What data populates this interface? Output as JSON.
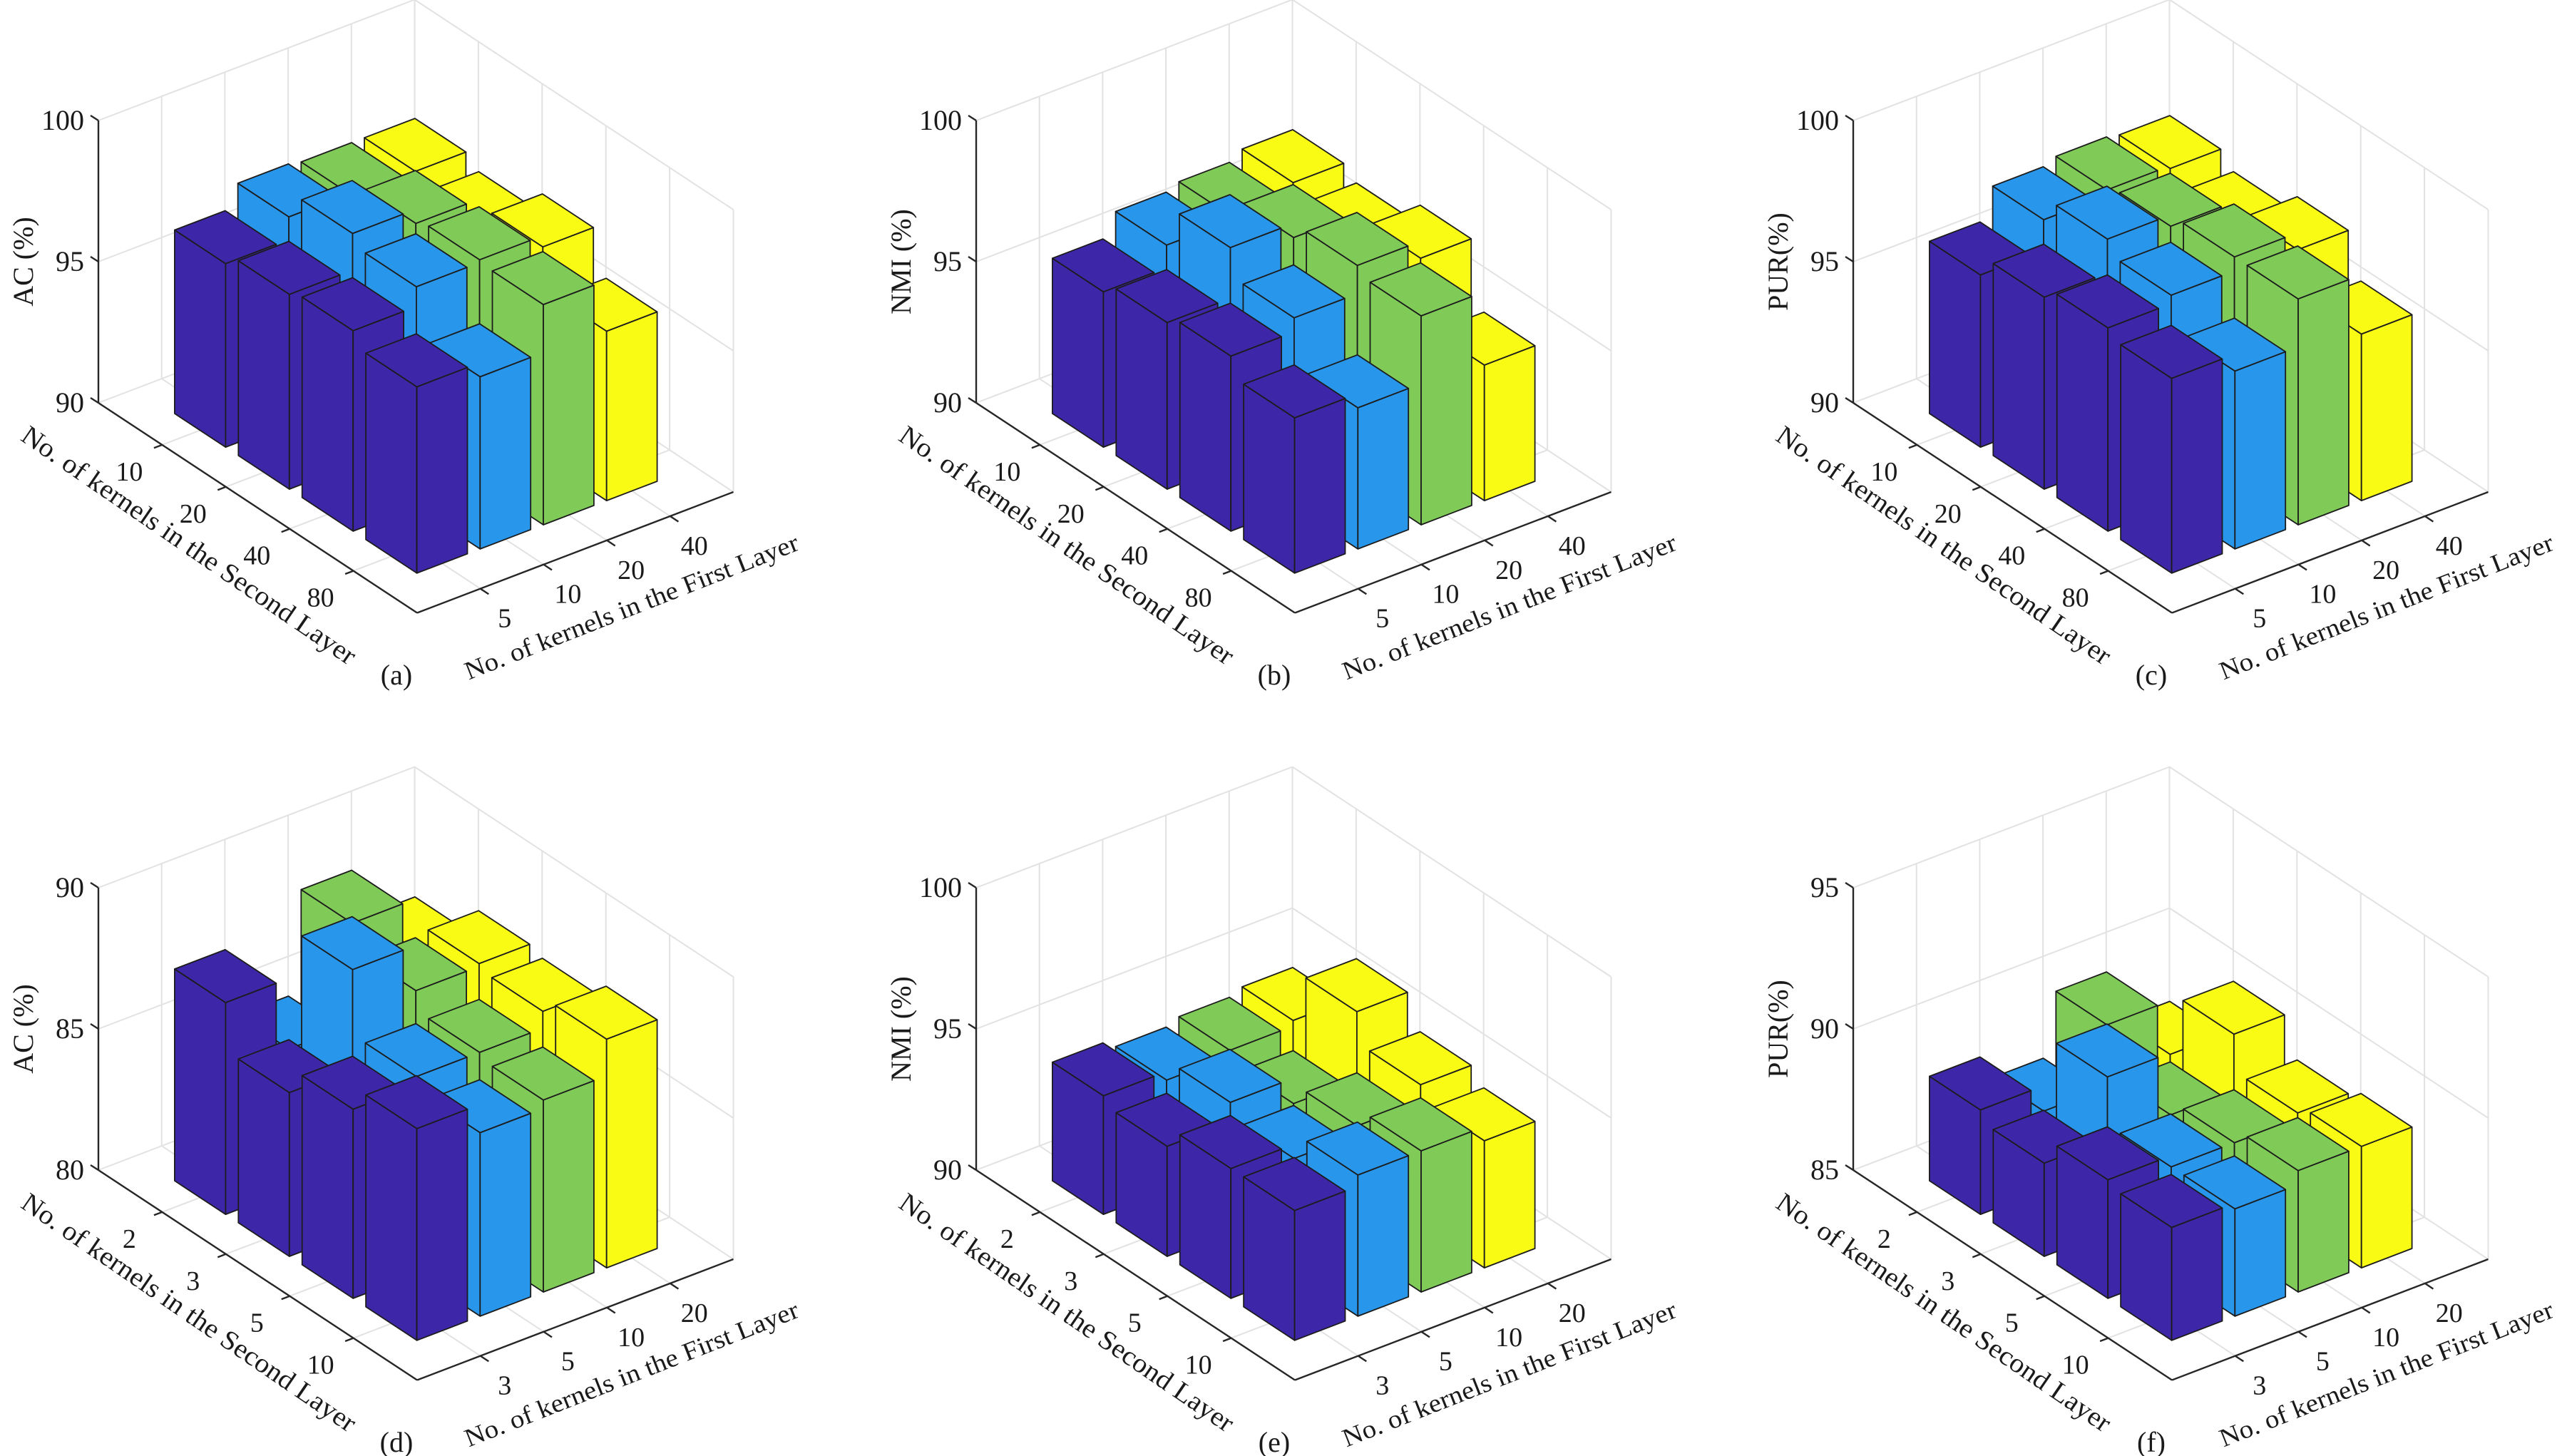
{
  "chart_data": [
    {
      "type": "bar",
      "projection": "3d",
      "panel_label": "(a)",
      "zlabel": "AC (%)",
      "xlabel": "No. of kernels in the Second Layer",
      "ylabel": "No. of kernels in the First Layer",
      "zlim": [
        90,
        100
      ],
      "zticks": [
        "90",
        "95",
        "100"
      ],
      "categories_second": [
        "10",
        "20",
        "40",
        "80"
      ],
      "categories_first": [
        "5",
        "10",
        "20",
        "40"
      ],
      "grid": true,
      "series": [
        {
          "name": "5",
          "color": "#3e26a8",
          "values": [
            96.5,
            96.9,
            97.1,
            96.6
          ]
        },
        {
          "name": "10",
          "color": "#2896ea",
          "values": [
            97.3,
            98.2,
            97.8,
            96.1
          ]
        },
        {
          "name": "20",
          "color": "#80cb58",
          "values": [
            97.2,
            97.7,
            97.9,
            97.8
          ]
        },
        {
          "name": "40",
          "color": "#f9fb15",
          "values": [
            97.2,
            96.8,
            97.5,
            96.0
          ]
        }
      ]
    },
    {
      "type": "bar",
      "projection": "3d",
      "panel_label": "(b)",
      "zlabel": "NMI (%)",
      "xlabel": "No. of kernels in the Second Layer",
      "ylabel": "No. of kernels in the First Layer",
      "zlim": [
        90,
        100
      ],
      "zticks": [
        "90",
        "95",
        "100"
      ],
      "categories_second": [
        "10",
        "20",
        "40",
        "80"
      ],
      "categories_first": [
        "5",
        "10",
        "20",
        "40"
      ],
      "grid": true,
      "series": [
        {
          "name": "5",
          "color": "#3e26a8",
          "values": [
            95.5,
            95.9,
            96.2,
            95.5
          ]
        },
        {
          "name": "10",
          "color": "#2896ea",
          "values": [
            96.3,
            97.7,
            96.7,
            95.0
          ]
        },
        {
          "name": "20",
          "color": "#80cb58",
          "values": [
            96.5,
            97.2,
            97.7,
            97.4
          ]
        },
        {
          "name": "40",
          "color": "#f9fb15",
          "values": [
            96.8,
            96.4,
            97.1,
            94.8
          ]
        }
      ]
    },
    {
      "type": "bar",
      "projection": "3d",
      "panel_label": "(c)",
      "zlabel": "PUR(%)",
      "xlabel": "No. of kernels in the Second Layer",
      "ylabel": "No. of kernels in the First Layer",
      "zlim": [
        90,
        100
      ],
      "zticks": [
        "90",
        "95",
        "100"
      ],
      "categories_second": [
        "10",
        "20",
        "40",
        "80"
      ],
      "categories_first": [
        "5",
        "10",
        "20",
        "40"
      ],
      "grid": true,
      "series": [
        {
          "name": "5",
          "color": "#3e26a8",
          "values": [
            96.1,
            96.8,
            97.2,
            96.9
          ]
        },
        {
          "name": "10",
          "color": "#2896ea",
          "values": [
            97.2,
            98.0,
            97.5,
            96.3
          ]
        },
        {
          "name": "20",
          "color": "#80cb58",
          "values": [
            97.4,
            97.6,
            98.0,
            98.0
          ]
        },
        {
          "name": "40",
          "color": "#f9fb15",
          "values": [
            97.3,
            96.8,
            97.4,
            95.9
          ]
        }
      ]
    },
    {
      "type": "bar",
      "projection": "3d",
      "panel_label": "(d)",
      "zlabel": "AC (%)",
      "xlabel": "No. of kernels in the Second Layer",
      "ylabel": "No. of kernels in the First Layer",
      "zlim": [
        80,
        90
      ],
      "zticks": [
        "80",
        "85",
        "90"
      ],
      "categories_second": [
        "2",
        "3",
        "5",
        "10"
      ],
      "categories_first": [
        "3",
        "5",
        "10",
        "20"
      ],
      "grid": true,
      "series": [
        {
          "name": "3",
          "color": "#3e26a8",
          "values": [
            87.5,
            85.8,
            86.7,
            87.5
          ]
        },
        {
          "name": "5",
          "color": "#2896ea",
          "values": [
            85.0,
            89.3,
            87.0,
            86.5
          ]
        },
        {
          "name": "10",
          "color": "#80cb58",
          "values": [
            88.6,
            87.7,
            87.0,
            86.8
          ]
        },
        {
          "name": "20",
          "color": "#f9fb15",
          "values": [
            86.8,
            87.8,
            87.6,
            88.1
          ]
        }
      ]
    },
    {
      "type": "bar",
      "projection": "3d",
      "panel_label": "(e)",
      "zlabel": "NMI (%)",
      "xlabel": "No. of kernels in the Second Layer",
      "ylabel": "No. of kernels in the First Layer",
      "zlim": [
        90,
        100
      ],
      "zticks": [
        "90",
        "95",
        "100"
      ],
      "categories_second": [
        "2",
        "3",
        "5",
        "10"
      ],
      "categories_first": [
        "3",
        "5",
        "10",
        "20"
      ],
      "grid": true,
      "series": [
        {
          "name": "3",
          "color": "#3e26a8",
          "values": [
            94.2,
            93.9,
            94.6,
            94.6
          ]
        },
        {
          "name": "5",
          "color": "#2896ea",
          "values": [
            93.9,
            94.6,
            94.1,
            95.0
          ]
        },
        {
          "name": "10",
          "color": "#80cb58",
          "values": [
            94.1,
            93.7,
            94.4,
            95.0
          ]
        },
        {
          "name": "20",
          "color": "#f9fb15",
          "values": [
            94.3,
            96.1,
            95.0,
            94.5
          ]
        }
      ]
    },
    {
      "type": "bar",
      "projection": "3d",
      "panel_label": "(f)",
      "zlabel": "PUR(%)",
      "xlabel": "No. of kernels in the Second Layer",
      "ylabel": "No. of kernels in the First Layer",
      "zlim": [
        85,
        95
      ],
      "zticks": [
        "85",
        "90",
        "95"
      ],
      "categories_second": [
        "2",
        "3",
        "5",
        "10"
      ],
      "categories_first": [
        "3",
        "5",
        "10",
        "20"
      ],
      "grid": true,
      "series": [
        {
          "name": "3",
          "color": "#3e26a8",
          "values": [
            88.7,
            88.3,
            89.2,
            89.0
          ]
        },
        {
          "name": "5",
          "color": "#2896ea",
          "values": [
            87.8,
            90.5,
            88.8,
            88.8
          ]
        },
        {
          "name": "10",
          "color": "#80cb58",
          "values": [
            90.0,
            88.3,
            88.8,
            89.3
          ]
        },
        {
          "name": "20",
          "color": "#f9fb15",
          "values": [
            88.1,
            90.3,
            89.0,
            89.3
          ]
        }
      ]
    }
  ]
}
